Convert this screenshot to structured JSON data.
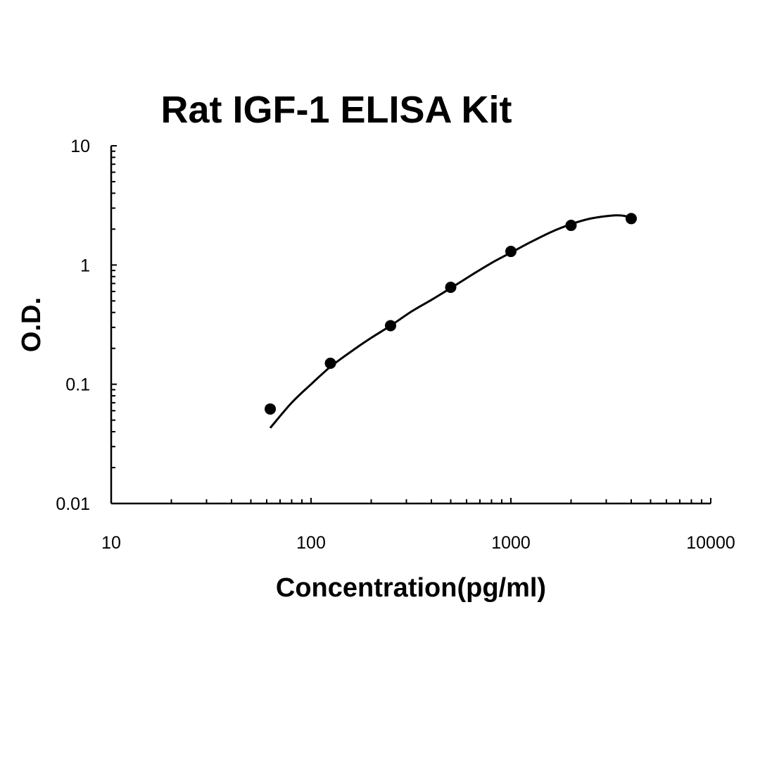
{
  "chart_data": {
    "type": "scatter",
    "title": "Rat IGF-1 ELISA Kit",
    "xlabel": "Concentration(pg/ml)",
    "ylabel": "O.D.",
    "x_scale": "log",
    "y_scale": "log",
    "xlim": [
      10,
      10000
    ],
    "ylim": [
      0.01,
      10
    ],
    "x_tick_labels": [
      "10",
      "100",
      "1000",
      "10000"
    ],
    "y_tick_labels": [
      "0.01",
      "0.1",
      "1",
      "10"
    ],
    "grid": false,
    "legend": "none",
    "series": [
      {
        "points": [
          {
            "x": 62.5,
            "y": 0.062
          },
          {
            "x": 125,
            "y": 0.15
          },
          {
            "x": 250,
            "y": 0.31
          },
          {
            "x": 500,
            "y": 0.65
          },
          {
            "x": 1000,
            "y": 1.3
          },
          {
            "x": 2000,
            "y": 2.15
          },
          {
            "x": 4000,
            "y": 2.45
          }
        ],
        "fit_curve": {
          "x": [
            62.5,
            80,
            100,
            125,
            160,
            200,
            250,
            320,
            400,
            500,
            640,
            800,
            1000,
            1250,
            1600,
            2000,
            2500,
            3200,
            3600,
            4000
          ],
          "y": [
            0.043,
            0.07,
            0.1,
            0.14,
            0.19,
            0.245,
            0.31,
            0.41,
            0.51,
            0.64,
            0.83,
            1.04,
            1.27,
            1.55,
            1.9,
            2.2,
            2.45,
            2.6,
            2.6,
            2.5
          ]
        }
      }
    ]
  }
}
